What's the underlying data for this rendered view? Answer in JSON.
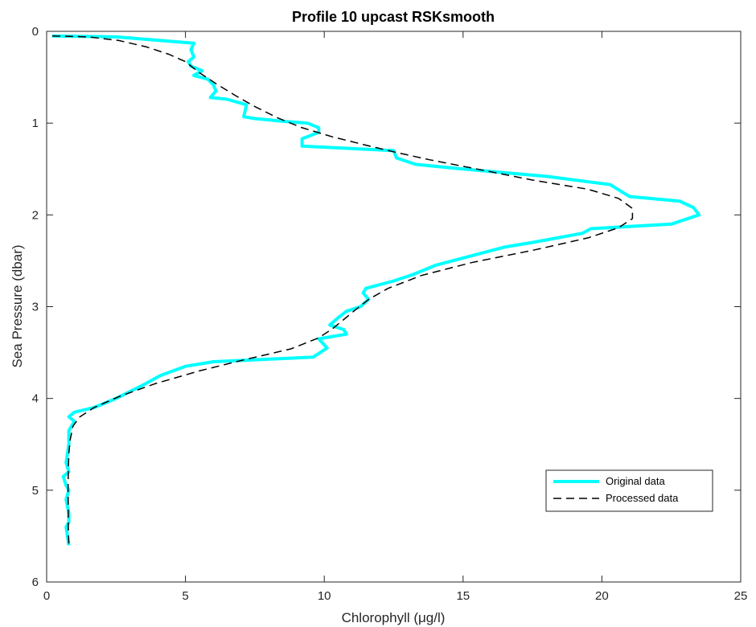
{
  "chart_data": {
    "type": "line",
    "title": "Profile 10 upcast RSKsmooth",
    "xlabel": "Chlorophyll (μg/l)",
    "ylabel": "Sea Pressure (dbar)",
    "xlim": [
      0,
      25
    ],
    "ylim": [
      0,
      6
    ],
    "y_reversed": true,
    "xticks": [
      0,
      5,
      10,
      15,
      20,
      25
    ],
    "yticks": [
      0,
      1,
      2,
      3,
      4,
      5,
      6
    ],
    "grid": false,
    "legend_position": "bottom-right",
    "series": [
      {
        "name": "Original data",
        "color": "#00ffff",
        "style": "solid",
        "x": [
          0.2,
          2.5,
          5.3,
          5.2,
          5.3,
          5.1,
          5.2,
          5.6,
          5.3,
          5.8,
          6.0,
          6.1,
          5.9,
          6.5,
          7.2,
          7.1,
          7.5,
          8.5,
          9.4,
          9.8,
          9.8,
          9.2,
          9.2,
          12.5,
          12.6,
          13.3,
          15.0,
          18.0,
          20.3,
          21.0,
          22.8,
          23.3,
          23.5,
          22.5,
          19.6,
          19.3,
          17.5,
          16.5,
          14.0,
          13.2,
          12.5,
          11.5,
          11.4,
          11.6,
          11.3,
          10.8,
          10.5,
          10.2,
          10.7,
          10.8,
          9.8,
          10.1,
          9.6,
          6.0,
          5.0,
          4.1,
          3.5,
          2.5,
          1.7,
          1.0,
          0.8,
          1.0,
          0.8,
          0.8,
          0.7,
          0.8,
          0.6,
          0.7,
          0.8,
          0.7,
          0.8,
          0.8,
          0.7,
          0.8
        ],
        "y": [
          0.05,
          0.06,
          0.13,
          0.2,
          0.28,
          0.33,
          0.38,
          0.43,
          0.48,
          0.52,
          0.58,
          0.65,
          0.72,
          0.74,
          0.8,
          0.93,
          0.95,
          0.98,
          1.0,
          1.05,
          1.1,
          1.17,
          1.25,
          1.3,
          1.38,
          1.45,
          1.5,
          1.58,
          1.67,
          1.8,
          1.85,
          1.92,
          2.0,
          2.1,
          2.15,
          2.2,
          2.3,
          2.35,
          2.55,
          2.65,
          2.72,
          2.8,
          2.85,
          2.92,
          3.0,
          3.05,
          3.12,
          3.2,
          3.25,
          3.3,
          3.35,
          3.45,
          3.55,
          3.6,
          3.65,
          3.75,
          3.85,
          4.0,
          4.1,
          4.15,
          4.2,
          4.25,
          4.35,
          4.5,
          4.7,
          4.8,
          4.85,
          4.95,
          5.0,
          5.1,
          5.25,
          5.35,
          5.4,
          5.6
        ]
      },
      {
        "name": "Processed data",
        "color": "#000000",
        "style": "dashed",
        "x": [
          0.2,
          1.5,
          2.6,
          3.6,
          4.4,
          5.0,
          5.5,
          6.1,
          6.8,
          7.5,
          8.3,
          9.2,
          10.3,
          11.5,
          12.6,
          13.8,
          15.5,
          17.5,
          19.5,
          20.6,
          21.1,
          21.1,
          20.6,
          19.5,
          17.6,
          15.3,
          13.5,
          12.3,
          11.6,
          11.1,
          10.7,
          10.3,
          9.8,
          8.8,
          7.1,
          5.5,
          3.9,
          2.6,
          1.7,
          1.2,
          0.95,
          0.85,
          0.8,
          0.78,
          0.77,
          0.78,
          0.78,
          0.8
        ],
        "y": [
          0.05,
          0.06,
          0.1,
          0.17,
          0.25,
          0.33,
          0.45,
          0.57,
          0.7,
          0.82,
          0.94,
          1.05,
          1.15,
          1.24,
          1.32,
          1.4,
          1.5,
          1.62,
          1.72,
          1.82,
          1.93,
          2.04,
          2.14,
          2.25,
          2.38,
          2.52,
          2.66,
          2.8,
          2.92,
          3.04,
          3.14,
          3.24,
          3.34,
          3.46,
          3.58,
          3.7,
          3.84,
          3.98,
          4.1,
          4.2,
          4.3,
          4.45,
          4.6,
          4.8,
          5.0,
          5.2,
          5.4,
          5.6
        ]
      }
    ]
  }
}
